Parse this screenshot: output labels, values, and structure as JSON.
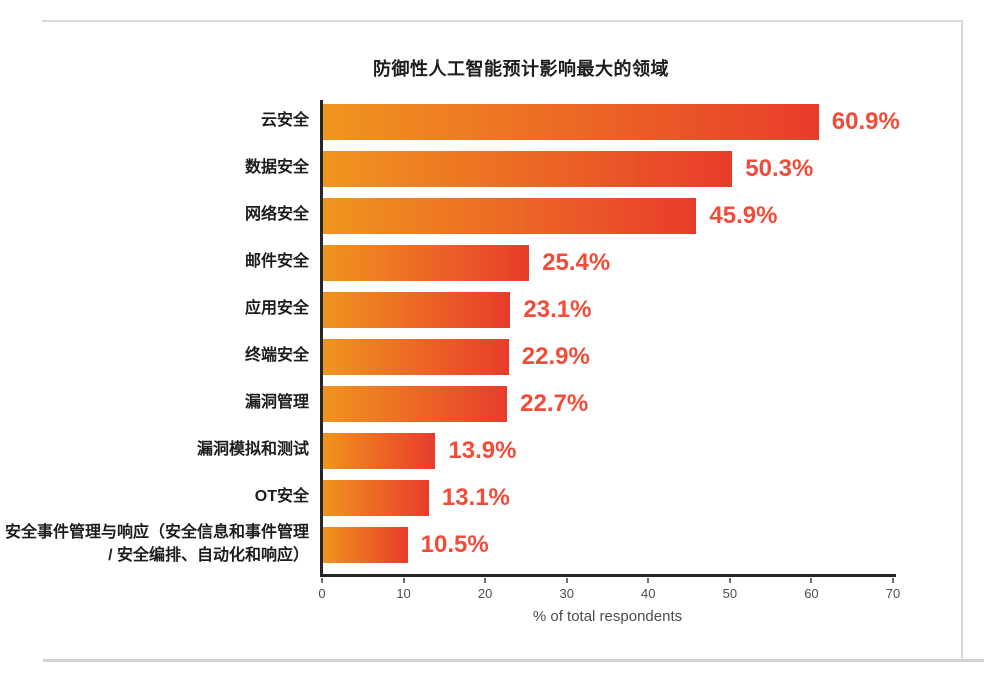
{
  "page": {
    "background": "#ffffff",
    "frame_color": "#d9d9d9"
  },
  "chart_data": {
    "type": "bar",
    "orientation": "horizontal",
    "title": "防御性人工智能预计影响最大的领域",
    "xlabel": "% of total respondents",
    "xlim": [
      0,
      70
    ],
    "x_ticks": [
      "0",
      "10",
      "20",
      "30",
      "40",
      "50",
      "60",
      "70"
    ],
    "x_tick_values": [
      0,
      10,
      20,
      30,
      40,
      50,
      60,
      70
    ],
    "grid": false,
    "legend": false,
    "categories": [
      "云安全",
      "数据安全",
      "网络安全",
      "邮件安全",
      "应用安全",
      "终端安全",
      "漏洞管理",
      "漏洞模拟和测试",
      "OT安全",
      "安全事件管理与响应（安全信息和事件管理 / 安全编排、自动化和响应）"
    ],
    "values": [
      60.9,
      50.3,
      45.9,
      25.4,
      23.1,
      22.9,
      22.7,
      13.9,
      13.1,
      10.5
    ],
    "value_labels": [
      "60.9%",
      "50.3%",
      "45.9%",
      "25.4%",
      "23.1%",
      "22.9%",
      "22.7%",
      "13.9%",
      "13.1%",
      "10.5%"
    ],
    "colors": {
      "bar_gradient_start": "#F0951E",
      "bar_gradient_end": "#E83C2B",
      "value_label": "#F04C38",
      "axis_line": "#262626",
      "tick_label": "#4d4d4f",
      "category_label": "#1d1d1f",
      "title": "#1d1d1f"
    }
  }
}
